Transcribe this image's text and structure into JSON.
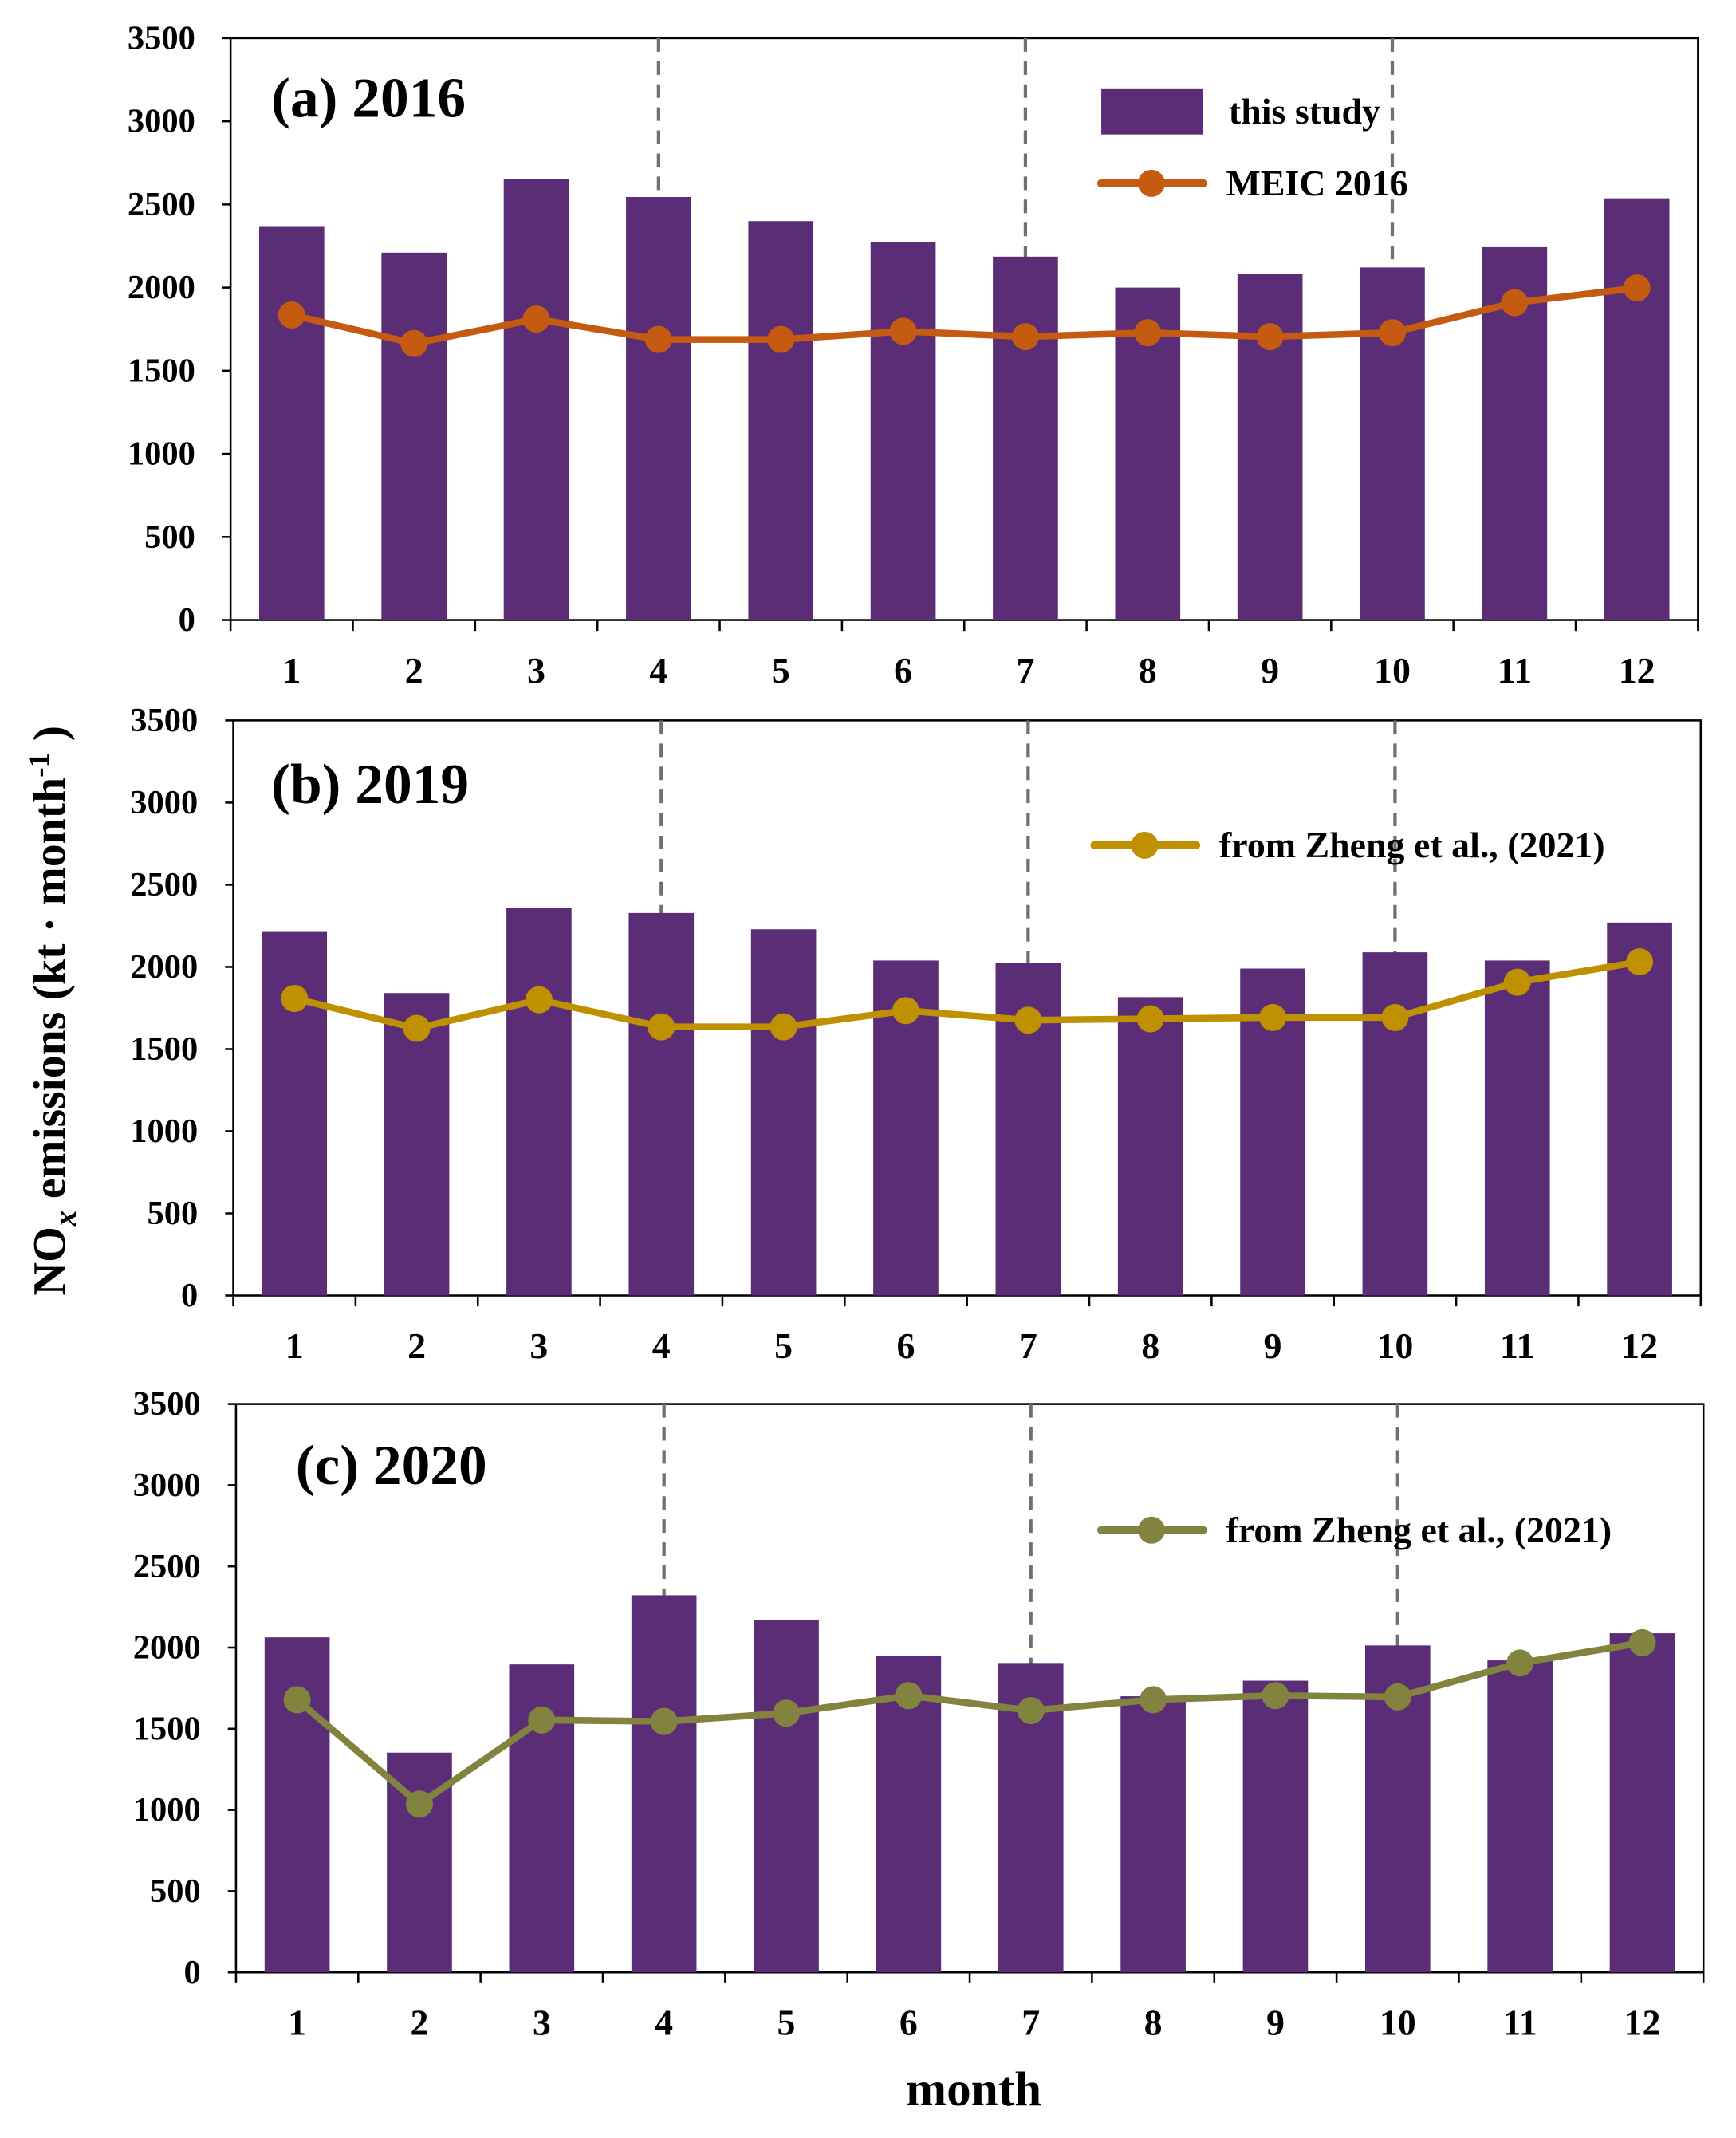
{
  "chart_data": [
    {
      "type": "bar",
      "title": "(a) 2016",
      "categories": [
        "1",
        "2",
        "3",
        "4",
        "5",
        "6",
        "7",
        "8",
        "9",
        "10",
        "11",
        "12"
      ],
      "ylim": [
        0,
        3500
      ],
      "yticks": [
        0,
        500,
        1000,
        1500,
        2000,
        2500,
        3000,
        3500
      ],
      "series": [
        {
          "name": "this study",
          "kind": "bar",
          "color": "#5B2D76",
          "values": [
            2365,
            2210,
            2655,
            2545,
            2400,
            2276,
            2186,
            2000,
            2080,
            2121,
            2243,
            2537
          ]
        },
        {
          "name": "MEIC 2016",
          "kind": "line",
          "color": "#C55A11",
          "values": [
            1835,
            1664,
            1811,
            1688,
            1688,
            1737,
            1705,
            1729,
            1705,
            1729,
            1909,
            1998
          ]
        }
      ]
    },
    {
      "type": "bar",
      "title": "(b) 2019",
      "categories": [
        "1",
        "2",
        "3",
        "4",
        "5",
        "6",
        "7",
        "8",
        "9",
        "10",
        "11",
        "12"
      ],
      "ylim": [
        0,
        3500
      ],
      "yticks": [
        0,
        500,
        1000,
        1500,
        2000,
        2500,
        3000,
        3500
      ],
      "series": [
        {
          "name": "this study",
          "kind": "bar",
          "color": "#5B2D76",
          "values": [
            2213,
            1841,
            2361,
            2328,
            2229,
            2039,
            2023,
            1816,
            1990,
            2089,
            2039,
            2270
          ]
        },
        {
          "name": "from Zheng et al., (2021)",
          "kind": "line",
          "color": "#BF9000",
          "values": [
            1808,
            1626,
            1800,
            1635,
            1635,
            1734,
            1676,
            1684,
            1692,
            1692,
            1907,
            2031
          ]
        }
      ]
    },
    {
      "type": "bar",
      "title": "(c) 2020",
      "categories": [
        "1",
        "2",
        "3",
        "4",
        "5",
        "6",
        "7",
        "8",
        "9",
        "10",
        "11",
        "12"
      ],
      "ylim": [
        0,
        3500
      ],
      "yticks": [
        0,
        500,
        1000,
        1500,
        2000,
        2500,
        3000,
        3500
      ],
      "series": [
        {
          "name": "this study",
          "kind": "bar",
          "color": "#5B2D76",
          "values": [
            2063,
            1353,
            1896,
            2322,
            2172,
            1946,
            1905,
            1700,
            1796,
            2013,
            1921,
            2088
          ]
        },
        {
          "name": "from Zheng et al., (2021)",
          "kind": "line",
          "color": "#838340",
          "values": [
            1679,
            1036,
            1554,
            1545,
            1596,
            1704,
            1612,
            1679,
            1704,
            1696,
            1905,
            2030
          ]
        }
      ]
    }
  ],
  "ylabel_main": "NO",
  "ylabel_sub": "x",
  "ylabel_rest": " emissions (kt · month",
  "ylabel_sup": "-1",
  "ylabel_close": " )",
  "xlabel": "month",
  "season_dividers": [
    3.5,
    6.5,
    9.5
  ]
}
